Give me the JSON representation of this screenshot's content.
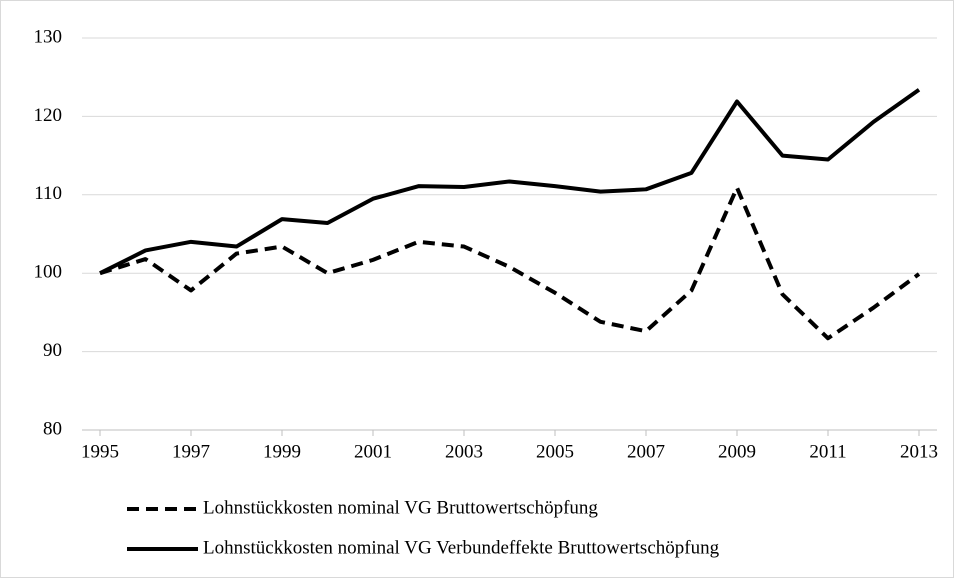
{
  "chart_data": {
    "type": "line",
    "x": [
      1995,
      1996,
      1997,
      1998,
      1999,
      2000,
      2001,
      2002,
      2003,
      2004,
      2005,
      2006,
      2007,
      2008,
      2009,
      2010,
      2011,
      2012,
      2013
    ],
    "series": [
      {
        "name": "Lohnstückkosten nominal VG Bruttowertschöpfung",
        "color": "#000000",
        "dash": true,
        "values": [
          100,
          101.8,
          97.8,
          102.5,
          103.4,
          100,
          101.7,
          104,
          103.4,
          100.8,
          97.5,
          93.8,
          92.6,
          97.8,
          110.9,
          97.3,
          91.7,
          95.6,
          99.9
        ]
      },
      {
        "name": "Lohnstückkosten nominal VG Verbundeffekte Bruttowertschöpfung",
        "color": "#000000",
        "dash": false,
        "values": [
          100,
          102.9,
          104,
          103.4,
          106.9,
          106.4,
          109.5,
          111.1,
          111,
          111.7,
          111.1,
          110.4,
          110.7,
          112.8,
          121.9,
          115,
          114.5,
          119.3,
          123.4
        ]
      }
    ],
    "xlim": [
      1995,
      2013
    ],
    "xticks": [
      1995,
      1997,
      1999,
      2001,
      2003,
      2005,
      2007,
      2009,
      2011,
      2013
    ],
    "ylim": [
      80,
      130
    ],
    "yticks": [
      80,
      90,
      100,
      110,
      120,
      130
    ],
    "grid": true,
    "legend": "bottom"
  }
}
